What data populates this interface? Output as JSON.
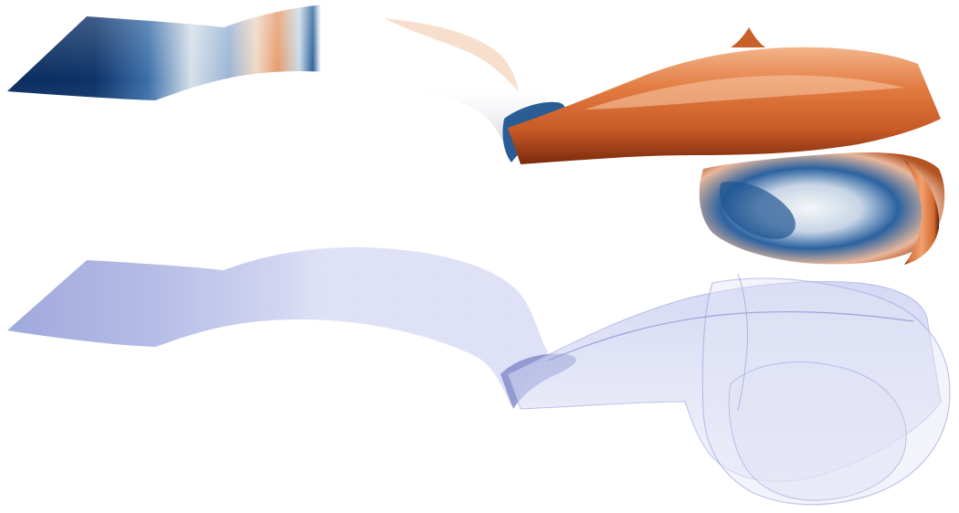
{
  "figure": {
    "panels": [
      {
        "id": "top",
        "rendering": "colored-surface",
        "colormap": [
          "#0a2c5e",
          "#2f6aa8",
          "#f4f6f8",
          "#e9834b",
          "#b8461a"
        ]
      },
      {
        "id": "bottom",
        "rendering": "translucent-surface",
        "colors": [
          "#8f9ad6",
          "#c3c8ee",
          "#e6e8f8"
        ]
      }
    ]
  }
}
